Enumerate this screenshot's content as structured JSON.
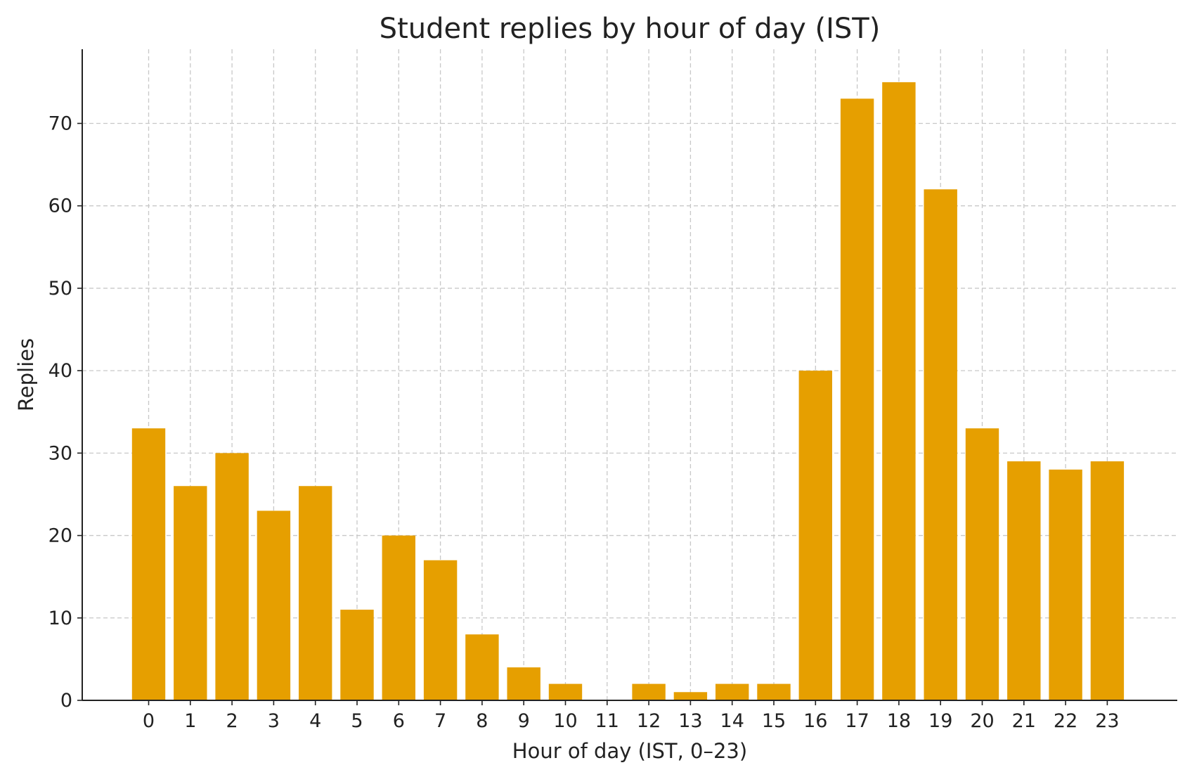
{
  "chart_data": {
    "type": "bar",
    "title": "Student replies by hour of day (IST)",
    "xlabel": "Hour of day (IST, 0–23)",
    "ylabel": "Replies",
    "categories": [
      "0",
      "1",
      "2",
      "3",
      "4",
      "5",
      "6",
      "7",
      "8",
      "9",
      "10",
      "11",
      "12",
      "13",
      "14",
      "15",
      "16",
      "17",
      "18",
      "19",
      "20",
      "21",
      "22",
      "23"
    ],
    "values": [
      33,
      26,
      30,
      23,
      26,
      11,
      20,
      17,
      8,
      4,
      2,
      0,
      2,
      1,
      2,
      2,
      40,
      73,
      75,
      62,
      33,
      29,
      28,
      29
    ],
    "yticks": [
      0,
      10,
      20,
      30,
      40,
      50,
      60,
      70
    ],
    "ylim": [
      0,
      79
    ],
    "grid": true,
    "bar_color": "#E69F00"
  }
}
